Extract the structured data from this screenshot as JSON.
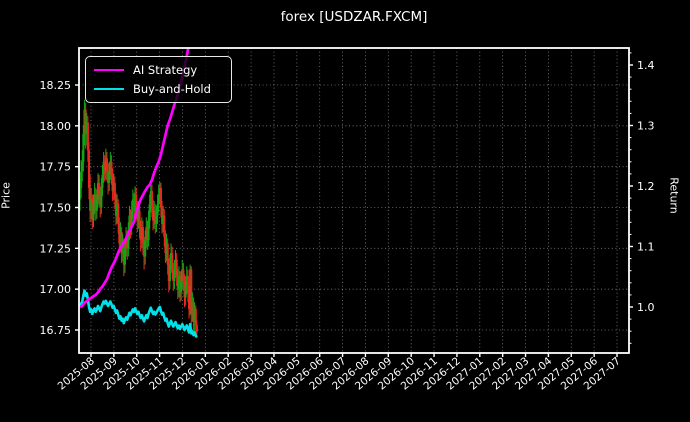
{
  "title": "forex [USDZAR.FXCM]",
  "colors": {
    "background": "#000000",
    "foreground": "#ffffff",
    "grid": "rgba(255,255,255,0.5)",
    "ai_strategy": "#ff00ff",
    "buy_and_hold": "#00e1ea",
    "candle_up": "#12a512",
    "candle_down": "#e82820"
  },
  "legend": {
    "items": [
      {
        "label": "AI Strategy",
        "color": "#ff00ff"
      },
      {
        "label": "Buy-and-Hold",
        "color": "#00e1ea"
      }
    ]
  },
  "axes": {
    "left": {
      "label": "Price",
      "ticks": [
        16.75,
        17.0,
        17.25,
        17.5,
        17.75,
        18.0,
        18.25
      ]
    },
    "right": {
      "label": "Return",
      "ticks": [
        1.0,
        1.1,
        1.2,
        1.3,
        1.4
      ]
    },
    "x": {
      "labels": [
        "2025-08",
        "2025-09",
        "2025-10",
        "2025-11",
        "2025-12",
        "2026-01",
        "2026-02",
        "2026-03",
        "2026-04",
        "2026-05",
        "2026-06",
        "2026-07",
        "2026-08",
        "2026-09",
        "2026-10",
        "2026-11",
        "2026-12",
        "2027-01",
        "2027-02",
        "2027-03",
        "2027-04",
        "2027-05",
        "2027-06",
        "2027-07"
      ]
    }
  },
  "chart_data": {
    "type": "candlestick+line",
    "title": "forex [USDZAR.FXCM]",
    "xlabel": "",
    "ylabel_left": "Price",
    "ylabel_right": "Return",
    "x_range": [
      "2025-08",
      "2027-07"
    ],
    "data_range": [
      "2025-08",
      "2026-01"
    ],
    "price_ylim": [
      16.61,
      18.48
    ],
    "return_ylim": [
      0.924,
      1.428
    ],
    "grid": "dotted",
    "legend_position": "upper-left",
    "buy_hold_base": 17.62,
    "candles_ohlc": [
      [
        17.55,
        17.68,
        17.48,
        17.62
      ],
      [
        17.62,
        17.79,
        17.56,
        17.72
      ],
      [
        17.72,
        17.85,
        17.66,
        17.78
      ],
      [
        17.78,
        18.0,
        17.72,
        17.95
      ],
      [
        17.95,
        18.16,
        17.88,
        18.1
      ],
      [
        18.1,
        18.14,
        17.86,
        17.95
      ],
      [
        17.95,
        18.08,
        17.88,
        18.02
      ],
      [
        18.02,
        18.06,
        17.78,
        17.85
      ],
      [
        17.85,
        17.9,
        17.55,
        17.62
      ],
      [
        17.62,
        17.7,
        17.41,
        17.48
      ],
      [
        17.48,
        17.62,
        17.43,
        17.55
      ],
      [
        17.55,
        17.58,
        17.37,
        17.42
      ],
      [
        17.42,
        17.58,
        17.38,
        17.52
      ],
      [
        17.52,
        17.65,
        17.46,
        17.58
      ],
      [
        17.58,
        17.62,
        17.42,
        17.48
      ],
      [
        17.48,
        17.61,
        17.43,
        17.55
      ],
      [
        17.55,
        17.71,
        17.5,
        17.65
      ],
      [
        17.65,
        17.7,
        17.52,
        17.58
      ],
      [
        17.58,
        17.63,
        17.44,
        17.5
      ],
      [
        17.5,
        17.68,
        17.46,
        17.62
      ],
      [
        17.62,
        17.76,
        17.57,
        17.7
      ],
      [
        17.7,
        17.84,
        17.65,
        17.78
      ],
      [
        17.78,
        17.82,
        17.66,
        17.72
      ],
      [
        17.72,
        17.86,
        17.67,
        17.8
      ],
      [
        17.8,
        17.84,
        17.66,
        17.72
      ],
      [
        17.72,
        17.77,
        17.58,
        17.65
      ],
      [
        17.65,
        17.78,
        17.6,
        17.72
      ],
      [
        17.72,
        17.84,
        17.67,
        17.78
      ],
      [
        17.78,
        17.82,
        17.64,
        17.7
      ],
      [
        17.7,
        17.74,
        17.54,
        17.6
      ],
      [
        17.6,
        17.71,
        17.55,
        17.65
      ],
      [
        17.65,
        17.69,
        17.49,
        17.55
      ],
      [
        17.55,
        17.59,
        17.39,
        17.45
      ],
      [
        17.45,
        17.58,
        17.4,
        17.52
      ],
      [
        17.52,
        17.55,
        17.34,
        17.4
      ],
      [
        17.4,
        17.44,
        17.22,
        17.28
      ],
      [
        17.28,
        17.41,
        17.23,
        17.35
      ],
      [
        17.35,
        17.38,
        17.16,
        17.22
      ],
      [
        17.22,
        17.34,
        17.17,
        17.28
      ],
      [
        17.28,
        17.31,
        17.08,
        17.15
      ],
      [
        17.15,
        17.31,
        17.1,
        17.25
      ],
      [
        17.25,
        17.38,
        17.2,
        17.32
      ],
      [
        17.32,
        17.36,
        17.18,
        17.25
      ],
      [
        17.25,
        17.41,
        17.2,
        17.35
      ],
      [
        17.35,
        17.51,
        17.3,
        17.45
      ],
      [
        17.45,
        17.49,
        17.31,
        17.38
      ],
      [
        17.38,
        17.54,
        17.33,
        17.48
      ],
      [
        17.48,
        17.61,
        17.43,
        17.55
      ],
      [
        17.55,
        17.59,
        17.41,
        17.48
      ],
      [
        17.48,
        17.63,
        17.43,
        17.58
      ],
      [
        17.58,
        17.62,
        17.44,
        17.5
      ],
      [
        17.5,
        17.54,
        17.35,
        17.42
      ],
      [
        17.42,
        17.54,
        17.37,
        17.48
      ],
      [
        17.48,
        17.52,
        17.31,
        17.38
      ],
      [
        17.38,
        17.42,
        17.23,
        17.3
      ],
      [
        17.3,
        17.44,
        17.25,
        17.38
      ],
      [
        17.38,
        17.42,
        17.21,
        17.28
      ],
      [
        17.28,
        17.32,
        17.12,
        17.2
      ],
      [
        17.2,
        17.36,
        17.15,
        17.3
      ],
      [
        17.3,
        17.44,
        17.25,
        17.38
      ],
      [
        17.38,
        17.42,
        17.24,
        17.3
      ],
      [
        17.3,
        17.48,
        17.26,
        17.42
      ],
      [
        17.42,
        17.58,
        17.37,
        17.52
      ],
      [
        17.52,
        17.66,
        17.47,
        17.6
      ],
      [
        17.6,
        17.64,
        17.44,
        17.5
      ],
      [
        17.5,
        17.55,
        17.36,
        17.42
      ],
      [
        17.42,
        17.54,
        17.37,
        17.48
      ],
      [
        17.48,
        17.52,
        17.34,
        17.4
      ],
      [
        17.4,
        17.51,
        17.35,
        17.45
      ],
      [
        17.45,
        17.58,
        17.4,
        17.52
      ],
      [
        17.52,
        17.64,
        17.47,
        17.58
      ],
      [
        17.58,
        17.66,
        17.52,
        17.62
      ],
      [
        17.62,
        17.65,
        17.44,
        17.5
      ],
      [
        17.5,
        17.54,
        17.34,
        17.4
      ],
      [
        17.4,
        17.51,
        17.35,
        17.45
      ],
      [
        17.45,
        17.49,
        17.26,
        17.32
      ],
      [
        17.32,
        17.36,
        17.16,
        17.22
      ],
      [
        17.22,
        17.34,
        17.17,
        17.28
      ],
      [
        17.28,
        17.31,
        17.09,
        17.15
      ],
      [
        17.15,
        17.19,
        16.98,
        17.05
      ],
      [
        17.05,
        17.21,
        17.0,
        17.15
      ],
      [
        17.15,
        17.28,
        17.1,
        17.22
      ],
      [
        17.22,
        17.26,
        17.06,
        17.12
      ],
      [
        17.12,
        17.16,
        16.99,
        17.05
      ],
      [
        17.05,
        17.18,
        17.0,
        17.12
      ],
      [
        17.12,
        17.24,
        17.07,
        17.18
      ],
      [
        17.18,
        17.22,
        17.02,
        17.08
      ],
      [
        17.08,
        17.12,
        16.94,
        17.0
      ],
      [
        17.0,
        17.14,
        16.95,
        17.08
      ],
      [
        17.08,
        17.11,
        16.92,
        16.98
      ],
      [
        16.98,
        17.11,
        16.93,
        17.05
      ],
      [
        17.05,
        17.18,
        17.0,
        17.12
      ],
      [
        17.12,
        17.16,
        16.99,
        17.05
      ],
      [
        17.05,
        17.09,
        16.89,
        16.95
      ],
      [
        16.95,
        17.08,
        16.9,
        17.02
      ],
      [
        17.02,
        17.14,
        16.97,
        17.08
      ],
      [
        17.08,
        17.12,
        16.92,
        16.98
      ],
      [
        16.98,
        17.02,
        16.82,
        16.88
      ],
      [
        16.88,
        17.15,
        16.84,
        17.12
      ],
      [
        17.12,
        17.14,
        16.78,
        16.85
      ],
      [
        16.85,
        16.98,
        16.8,
        16.92
      ],
      [
        16.92,
        16.95,
        16.75,
        16.8
      ],
      [
        16.8,
        16.92,
        16.74,
        16.88
      ],
      [
        16.88,
        16.9,
        16.73,
        16.78
      ],
      [
        16.78,
        16.81,
        16.7,
        16.74
      ]
    ],
    "series": [
      {
        "name": "AI Strategy",
        "axis": "return",
        "points": [
          [
            0,
            1.0
          ],
          [
            2,
            1.002
          ],
          [
            4,
            1.007
          ],
          [
            6,
            1.01
          ],
          [
            8,
            1.013
          ],
          [
            10,
            1.015
          ],
          [
            12,
            1.018
          ],
          [
            14,
            1.02
          ],
          [
            16,
            1.024
          ],
          [
            18,
            1.03
          ],
          [
            20,
            1.034
          ],
          [
            22,
            1.04
          ],
          [
            24,
            1.046
          ],
          [
            26,
            1.056
          ],
          [
            28,
            1.065
          ],
          [
            30,
            1.072
          ],
          [
            32,
            1.08
          ],
          [
            34,
            1.09
          ],
          [
            36,
            1.098
          ],
          [
            38,
            1.104
          ],
          [
            40,
            1.11
          ],
          [
            42,
            1.118
          ],
          [
            44,
            1.126
          ],
          [
            46,
            1.133
          ],
          [
            48,
            1.14
          ],
          [
            50,
            1.155
          ],
          [
            52,
            1.168
          ],
          [
            54,
            1.178
          ],
          [
            56,
            1.185
          ],
          [
            58,
            1.192
          ],
          [
            60,
            1.198
          ],
          [
            62,
            1.202
          ],
          [
            64,
            1.21
          ],
          [
            66,
            1.222
          ],
          [
            68,
            1.232
          ],
          [
            70,
            1.24
          ],
          [
            72,
            1.252
          ],
          [
            74,
            1.268
          ],
          [
            76,
            1.284
          ],
          [
            78,
            1.3
          ],
          [
            80,
            1.31
          ],
          [
            82,
            1.322
          ],
          [
            84,
            1.335
          ],
          [
            86,
            1.345
          ],
          [
            88,
            1.358
          ],
          [
            90,
            1.372
          ],
          [
            92,
            1.388
          ],
          [
            94,
            1.405
          ],
          [
            96,
            1.425
          ],
          [
            98,
            1.45
          ],
          [
            100,
            1.472
          ],
          [
            102,
            1.495
          ],
          [
            104,
            1.515
          ]
        ]
      },
      {
        "name": "Buy-and-Hold",
        "axis": "return",
        "derived_from": "candle closes / buy_hold_base"
      }
    ]
  }
}
